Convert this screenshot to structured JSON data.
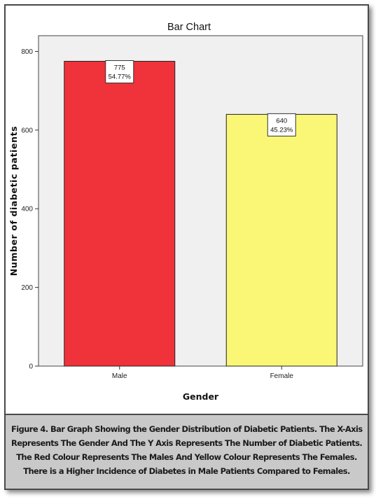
{
  "chart_data": {
    "type": "bar",
    "title": "Bar Chart",
    "xlabel": "Gender",
    "ylabel": "Number of diabetic patients",
    "categories": [
      "Male",
      "Female"
    ],
    "values": [
      775,
      640
    ],
    "data_labels": [
      {
        "count": "775",
        "percent": "54.77%"
      },
      {
        "count": "640",
        "percent": "45.23%"
      }
    ],
    "colors": [
      "#f0323a",
      "#fbf776"
    ],
    "ylim": [
      0,
      840
    ],
    "yticks": [
      0,
      200,
      400,
      600,
      800
    ],
    "grid": false,
    "legend": "none"
  },
  "caption": {
    "lines": [
      "Figure 4.  Bar Graph Showing the Gender Distribution of Diabetic Patients. The X-Axis",
      "Represents The Gender And The Y Axis Represents The Number of Diabetic Patients.",
      "The Red Colour Represents The Males And Yellow Colour Represents The Females.",
      "There is a Higher Incidence of Diabetes in Male Patients Compared to Females."
    ]
  }
}
